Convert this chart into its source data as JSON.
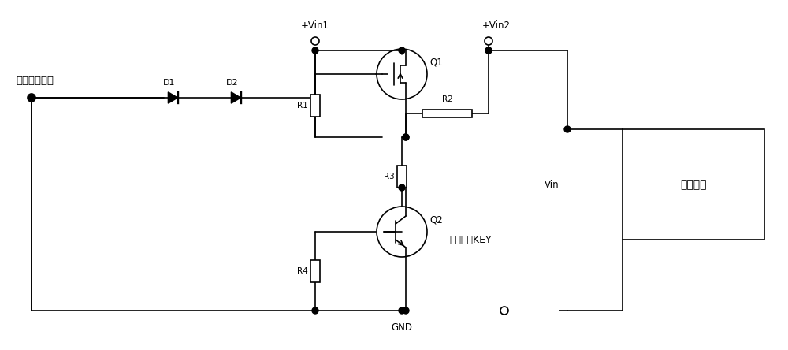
{
  "title": "",
  "bg_color": "#ffffff",
  "line_color": "#000000",
  "text_color": "#000000",
  "figsize": [
    10.0,
    4.44
  ],
  "dpi": 100,
  "labels": {
    "wai_jia": "外加开关信号",
    "vin1": "+Vin1",
    "vin2": "+Vin2",
    "d1": "D1",
    "d2": "D2",
    "r1": "R1",
    "r2": "R2",
    "r3": "R3",
    "r4": "R4",
    "q1": "Q1",
    "q2": "Q2",
    "gnd": "GND",
    "vin": "Vin",
    "func": "功能电路",
    "key": "开关信号KEY"
  }
}
